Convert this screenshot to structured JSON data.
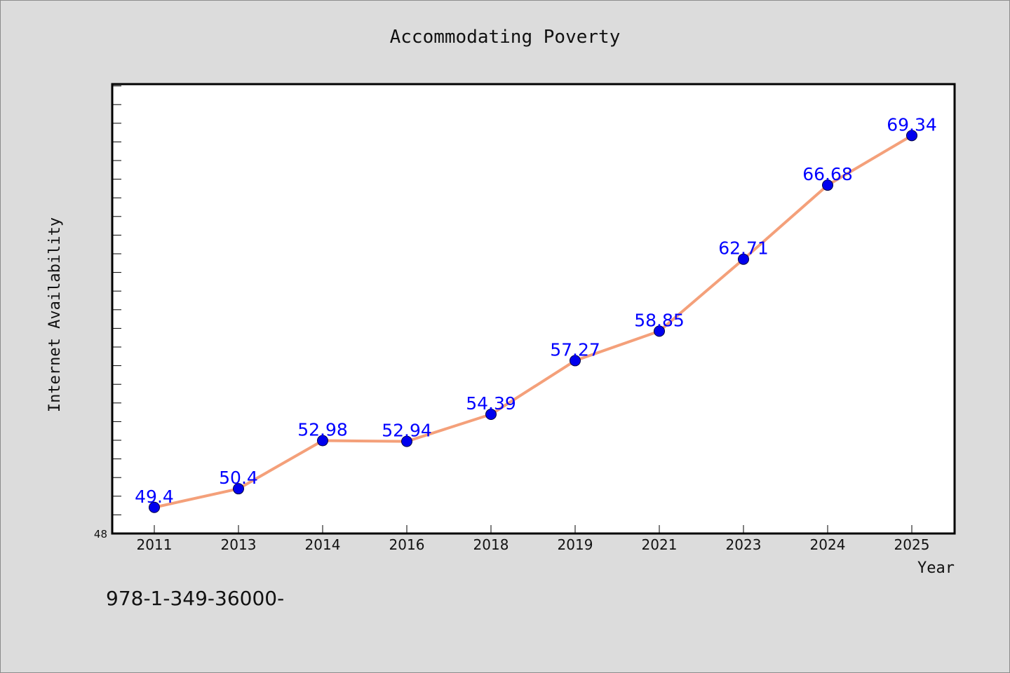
{
  "chart_data": {
    "type": "line",
    "title": "Accommodating Poverty",
    "xlabel": "Year",
    "ylabel": "Internet Availability",
    "categories": [
      "2011",
      "2013",
      "2014",
      "2016",
      "2018",
      "2019",
      "2021",
      "2023",
      "2024",
      "2025"
    ],
    "series": [
      {
        "values": [
          49.4,
          50.4,
          52.98,
          52.94,
          54.39,
          57.27,
          58.85,
          62.71,
          66.68,
          69.34
        ]
      }
    ],
    "data_labels": [
      "49.4",
      "50.4",
      "52.98",
      "52.94",
      "54.39",
      "57.27",
      "58.85",
      "62.71",
      "66.68",
      "69.34"
    ],
    "ylim": [
      48,
      72
    ],
    "y_tick_labels": [
      "48"
    ],
    "grid": false,
    "legend": "none",
    "colors": {
      "line": "#f4a07a",
      "marker": "#0000ee",
      "label": "#0000ff",
      "background": "#dcdcdc",
      "plot_background": "#ffffff"
    }
  },
  "footer": {
    "isbn": "978-1-349-36000-"
  }
}
